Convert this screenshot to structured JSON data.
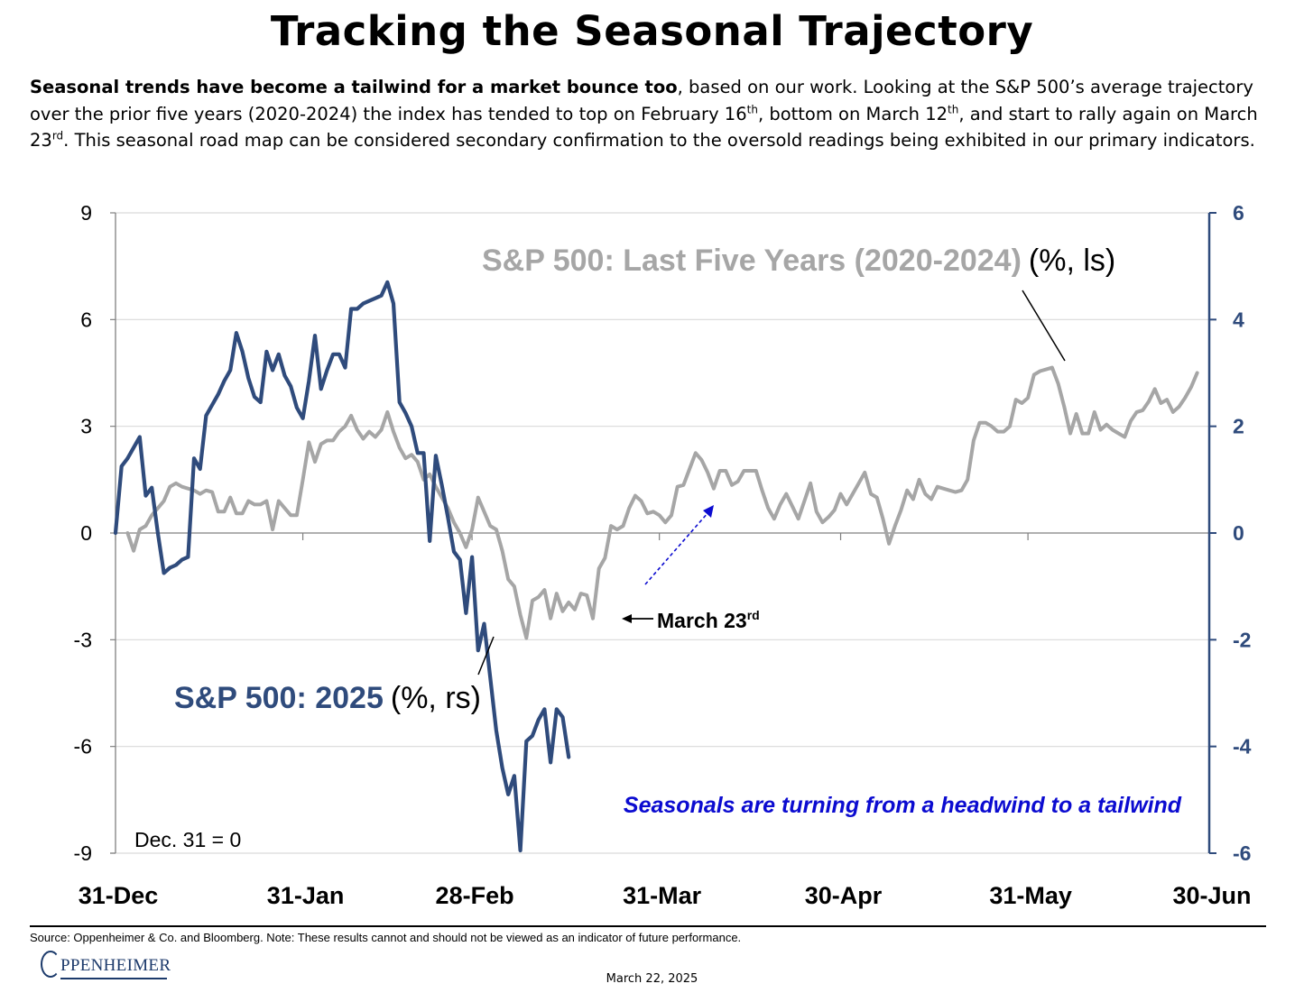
{
  "header": {
    "title": "Tracking the Seasonal Trajectory",
    "intro_bold": "Seasonal trends have become a tailwind for a market bounce too",
    "intro_part1": ", based on our work.  Looking at the S&P 500’s average trajectory over the prior five years (2020-2024) the index has tended to top on February 16",
    "intro_sup1": "th",
    "intro_part2": ", bottom on March 12",
    "intro_sup2": "th",
    "intro_part3": ", and start to rally again on March 23",
    "intro_sup3": "rd",
    "intro_part4": ".  This seasonal road map can be considered secondary confirmation to the oversold readings being exhibited in our primary indicators."
  },
  "chart_data": {
    "type": "line",
    "x_ticks": [
      "31-Dec",
      "31-Jan",
      "28-Feb",
      "31-Mar",
      "30-Apr",
      "31-May",
      "30-Jun"
    ],
    "x_tick_days": [
      0,
      31,
      59,
      90,
      120,
      151,
      181
    ],
    "x_range_days": [
      0,
      181
    ],
    "y_left": {
      "ticks": [
        "9",
        "6",
        "3",
        "0",
        "-3",
        "-6",
        "-9"
      ],
      "range": [
        -9,
        9
      ]
    },
    "y_right": {
      "ticks": [
        "6",
        "4",
        "2",
        "0",
        "-2",
        "-4",
        "-6"
      ],
      "range": [
        -6,
        6
      ]
    },
    "grid": true,
    "series": [
      {
        "name": "S&P 500: Last Five Years (2020-2024)",
        "unit_label": "(%, ls)",
        "axis": "left",
        "color": "#a6a6a6",
        "points": [
          [
            2,
            0.0
          ],
          [
            3,
            -0.5
          ],
          [
            4,
            0.1
          ],
          [
            5,
            0.2
          ],
          [
            6,
            0.5
          ],
          [
            7,
            0.7
          ],
          [
            8,
            0.9
          ],
          [
            9,
            1.3
          ],
          [
            10,
            1.4
          ],
          [
            11,
            1.3
          ],
          [
            12,
            1.25
          ],
          [
            13,
            1.2
          ],
          [
            14,
            1.1
          ],
          [
            15,
            1.2
          ],
          [
            16,
            1.15
          ],
          [
            17,
            0.6
          ],
          [
            18,
            0.6
          ],
          [
            19,
            1.0
          ],
          [
            20,
            0.55
          ],
          [
            21,
            0.55
          ],
          [
            22,
            0.9
          ],
          [
            23,
            0.8
          ],
          [
            24,
            0.8
          ],
          [
            25,
            0.9
          ],
          [
            26,
            0.1
          ],
          [
            27,
            0.9
          ],
          [
            28,
            0.7
          ],
          [
            29,
            0.5
          ],
          [
            30,
            0.5
          ],
          [
            31,
            1.5
          ],
          [
            32,
            2.55
          ],
          [
            33,
            2.0
          ],
          [
            34,
            2.5
          ],
          [
            35,
            2.6
          ],
          [
            36,
            2.6
          ],
          [
            37,
            2.85
          ],
          [
            38,
            3.0
          ],
          [
            39,
            3.3
          ],
          [
            40,
            2.9
          ],
          [
            41,
            2.65
          ],
          [
            42,
            2.85
          ],
          [
            43,
            2.7
          ],
          [
            44,
            2.9
          ],
          [
            45,
            3.4
          ],
          [
            46,
            2.85
          ],
          [
            47,
            2.4
          ],
          [
            48,
            2.1
          ],
          [
            49,
            2.2
          ],
          [
            50,
            2.0
          ],
          [
            51,
            1.5
          ],
          [
            52,
            1.65
          ],
          [
            53,
            1.3
          ],
          [
            54,
            1.0
          ],
          [
            55,
            0.7
          ],
          [
            56,
            0.3
          ],
          [
            57,
            0.0
          ],
          [
            58,
            -0.4
          ],
          [
            59,
            0.1
          ],
          [
            60,
            1.0
          ],
          [
            61,
            0.6
          ],
          [
            62,
            0.2
          ],
          [
            63,
            0.1
          ],
          [
            64,
            -0.5
          ],
          [
            65,
            -1.3
          ],
          [
            66,
            -1.5
          ],
          [
            67,
            -2.3
          ],
          [
            68,
            -2.95
          ],
          [
            69,
            -1.9
          ],
          [
            70,
            -1.8
          ],
          [
            71,
            -1.6
          ],
          [
            72,
            -2.4
          ],
          [
            73,
            -1.7
          ],
          [
            74,
            -2.2
          ],
          [
            75,
            -1.95
          ],
          [
            76,
            -2.15
          ],
          [
            77,
            -1.7
          ],
          [
            78,
            -1.75
          ],
          [
            79,
            -2.4
          ],
          [
            80,
            -1.0
          ],
          [
            81,
            -0.7
          ],
          [
            82,
            0.2
          ],
          [
            83,
            0.1
          ],
          [
            84,
            0.2
          ],
          [
            85,
            0.7
          ],
          [
            86,
            1.05
          ],
          [
            87,
            0.9
          ],
          [
            88,
            0.55
          ],
          [
            89,
            0.6
          ],
          [
            90,
            0.5
          ],
          [
            91,
            0.3
          ],
          [
            92,
            0.5
          ],
          [
            93,
            1.3
          ],
          [
            94,
            1.35
          ],
          [
            95,
            1.8
          ],
          [
            96,
            2.25
          ],
          [
            97,
            2.05
          ],
          [
            98,
            1.7
          ],
          [
            99,
            1.25
          ],
          [
            100,
            1.75
          ],
          [
            101,
            1.75
          ],
          [
            102,
            1.35
          ],
          [
            103,
            1.45
          ],
          [
            104,
            1.75
          ],
          [
            105,
            1.75
          ],
          [
            106,
            1.75
          ],
          [
            107,
            1.2
          ],
          [
            108,
            0.7
          ],
          [
            109,
            0.4
          ],
          [
            110,
            0.8
          ],
          [
            111,
            1.1
          ],
          [
            112,
            0.75
          ],
          [
            113,
            0.4
          ],
          [
            114,
            0.9
          ],
          [
            115,
            1.4
          ],
          [
            116,
            0.6
          ],
          [
            117,
            0.3
          ],
          [
            118,
            0.45
          ],
          [
            119,
            0.65
          ],
          [
            120,
            1.1
          ],
          [
            121,
            0.8
          ],
          [
            122,
            1.1
          ],
          [
            123,
            1.4
          ],
          [
            124,
            1.7
          ],
          [
            125,
            1.1
          ],
          [
            126,
            1.0
          ],
          [
            127,
            0.4
          ],
          [
            128,
            -0.3
          ],
          [
            129,
            0.2
          ],
          [
            130,
            0.65
          ],
          [
            131,
            1.2
          ],
          [
            132,
            0.95
          ],
          [
            133,
            1.5
          ],
          [
            134,
            1.1
          ],
          [
            135,
            0.95
          ],
          [
            136,
            1.3
          ],
          [
            137,
            1.25
          ],
          [
            138,
            1.2
          ],
          [
            139,
            1.15
          ],
          [
            140,
            1.2
          ],
          [
            141,
            1.5
          ],
          [
            142,
            2.6
          ],
          [
            143,
            3.1
          ],
          [
            144,
            3.1
          ],
          [
            145,
            3.0
          ],
          [
            146,
            2.85
          ],
          [
            147,
            2.85
          ],
          [
            148,
            3.0
          ],
          [
            149,
            3.75
          ],
          [
            150,
            3.65
          ],
          [
            151,
            3.8
          ],
          [
            152,
            4.45
          ],
          [
            153,
            4.55
          ],
          [
            154,
            4.6
          ],
          [
            155,
            4.65
          ],
          [
            156,
            4.2
          ],
          [
            157,
            3.55
          ],
          [
            158,
            2.8
          ],
          [
            159,
            3.35
          ],
          [
            160,
            2.8
          ],
          [
            161,
            2.8
          ],
          [
            162,
            3.4
          ],
          [
            163,
            2.9
          ],
          [
            164,
            3.05
          ],
          [
            165,
            2.9
          ],
          [
            166,
            2.8
          ],
          [
            167,
            2.7
          ],
          [
            168,
            3.15
          ],
          [
            169,
            3.4
          ],
          [
            170,
            3.45
          ],
          [
            171,
            3.7
          ],
          [
            172,
            4.05
          ],
          [
            173,
            3.65
          ],
          [
            174,
            3.75
          ],
          [
            175,
            3.4
          ],
          [
            176,
            3.55
          ],
          [
            177,
            3.8
          ],
          [
            178,
            4.1
          ],
          [
            179,
            4.5
          ]
        ]
      },
      {
        "name": "S&P 500: 2025",
        "unit_label": "(%, rs)",
        "axis": "right",
        "color": "#2f4b7c",
        "points": [
          [
            0,
            0.0
          ],
          [
            1,
            1.25
          ],
          [
            2,
            1.4
          ],
          [
            3,
            1.6
          ],
          [
            4,
            1.8
          ],
          [
            5,
            0.7
          ],
          [
            6,
            0.85
          ],
          [
            7,
            0.0
          ],
          [
            8,
            -0.75
          ],
          [
            9,
            -0.65
          ],
          [
            10,
            -0.6
          ],
          [
            11,
            -0.5
          ],
          [
            12,
            -0.45
          ],
          [
            13,
            1.4
          ],
          [
            14,
            1.2
          ],
          [
            15,
            2.2
          ],
          [
            16,
            2.4
          ],
          [
            17,
            2.6
          ],
          [
            18,
            2.85
          ],
          [
            19,
            3.05
          ],
          [
            20,
            3.75
          ],
          [
            21,
            3.4
          ],
          [
            22,
            2.9
          ],
          [
            23,
            2.55
          ],
          [
            24,
            2.45
          ],
          [
            25,
            3.4
          ],
          [
            26,
            3.05
          ],
          [
            27,
            3.35
          ],
          [
            28,
            2.95
          ],
          [
            29,
            2.75
          ],
          [
            30,
            2.35
          ],
          [
            31,
            2.15
          ],
          [
            32,
            2.85
          ],
          [
            33,
            3.7
          ],
          [
            34,
            2.7
          ],
          [
            35,
            3.05
          ],
          [
            36,
            3.35
          ],
          [
            37,
            3.35
          ],
          [
            38,
            3.1
          ],
          [
            39,
            4.2
          ],
          [
            40,
            4.2
          ],
          [
            41,
            4.3
          ],
          [
            42,
            4.35
          ],
          [
            43,
            4.4
          ],
          [
            44,
            4.45
          ],
          [
            45,
            4.7
          ],
          [
            46,
            4.3
          ],
          [
            47,
            2.45
          ],
          [
            48,
            2.25
          ],
          [
            49,
            2.0
          ],
          [
            50,
            1.5
          ],
          [
            51,
            1.5
          ],
          [
            52,
            -0.15
          ],
          [
            53,
            1.45
          ],
          [
            54,
            0.9
          ],
          [
            55,
            0.3
          ],
          [
            56,
            -0.35
          ],
          [
            57,
            -0.5
          ],
          [
            58,
            -1.5
          ],
          [
            59,
            -0.45
          ],
          [
            60,
            -2.2
          ],
          [
            61,
            -1.7
          ],
          [
            62,
            -2.7
          ],
          [
            63,
            -3.7
          ],
          [
            64,
            -4.4
          ],
          [
            65,
            -4.9
          ],
          [
            66,
            -4.55
          ],
          [
            67,
            -5.95
          ],
          [
            68,
            -3.9
          ],
          [
            69,
            -3.8
          ],
          [
            70,
            -3.5
          ],
          [
            71,
            -3.3
          ],
          [
            72,
            -4.3
          ],
          [
            73,
            -3.3
          ],
          [
            74,
            -3.45
          ],
          [
            75,
            -4.2
          ]
        ]
      }
    ],
    "annotations": {
      "gray_label_main": "S&P 500: Last Five Years (2020-2024)",
      "gray_label_unit": "(%, ls)",
      "blue_label_main": "S&P 500: 2025",
      "blue_label_unit": "(%, rs)",
      "march_label": "March 23",
      "march_sup": "rd",
      "seasonal_note": "Seasonals are turning from a headwind to a tailwind",
      "baseline_note": "Dec. 31 = 0"
    }
  },
  "footer": {
    "source": "Source:  Oppenheimer & Co. and Bloomberg. Note: These results cannot and should not be viewed as an indicator of future performance.",
    "logo_text": "PPENHEIMER",
    "date": "March 22, 2025"
  },
  "colors": {
    "gray_series": "#a6a6a6",
    "blue_series": "#2f4b7c",
    "note_blue": "#0b0bd0",
    "grid": "#d9d9d9"
  }
}
